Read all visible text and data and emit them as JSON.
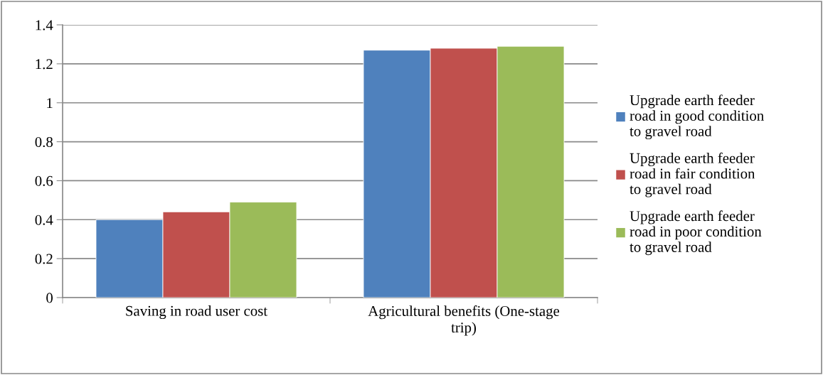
{
  "chart_data": {
    "type": "bar",
    "categories": [
      "Saving in road user cost",
      "Agricultural benefits (One-stage trip)"
    ],
    "series": [
      {
        "name": "Upgrade earth feeder road in good condition to gravel road",
        "color": "#4f81bd",
        "values": [
          0.4,
          1.27
        ]
      },
      {
        "name": "Upgrade earth feeder road in fair condition to gravel road",
        "color": "#c0504d",
        "values": [
          0.44,
          1.28
        ]
      },
      {
        "name": "Upgrade earth feeder road in poor condition to gravel road",
        "color": "#9bbb59",
        "values": [
          0.49,
          1.29
        ]
      }
    ],
    "ylim": [
      0,
      1.4
    ],
    "yticks": [
      0,
      0.2,
      0.4,
      0.6,
      0.8,
      1,
      1.2,
      1.4
    ],
    "grid": "y",
    "legend": "right"
  }
}
